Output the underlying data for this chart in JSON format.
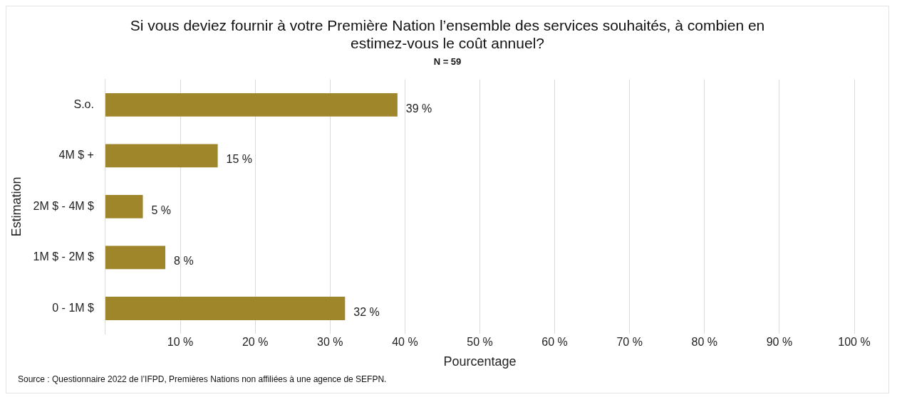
{
  "chart_data": {
    "type": "bar",
    "orientation": "horizontal",
    "title": "Si vous deviez fournir à votre Première Nation l’ensemble des services souhaités, à combien en estimez-vous le coût annuel?",
    "subtitle": "N = 59",
    "xlabel": "Pourcentage",
    "ylabel": "Estimation",
    "categories": [
      "S.o.",
      "4M $ +",
      "2M $ - 4M $",
      "1M $ - 2M $",
      "0 - 1M $"
    ],
    "values": [
      39,
      15,
      5,
      8,
      32
    ],
    "value_labels": [
      "39 %",
      "15 %",
      "5 %",
      "8 %",
      "32 %"
    ],
    "color": "#a0862b",
    "xlim": [
      0,
      100
    ],
    "xticks": [
      {
        "value": 10,
        "label": "10 %"
      },
      {
        "value": 20,
        "label": "20 %"
      },
      {
        "value": 30,
        "label": "30 %"
      },
      {
        "value": 40,
        "label": "40 %"
      },
      {
        "value": 50,
        "label": "50 %"
      },
      {
        "value": 60,
        "label": "60 %"
      },
      {
        "value": 70,
        "label": "70 %"
      },
      {
        "value": 80,
        "label": "80 %"
      },
      {
        "value": 90,
        "label": "90 %"
      },
      {
        "value": 100,
        "label": "100 %"
      }
    ],
    "grid": "x",
    "annotations": [
      "Source : Questionnaire 2022 de l’IFPD, Premières Nations non affiliées à une agence de SEFPN."
    ]
  }
}
